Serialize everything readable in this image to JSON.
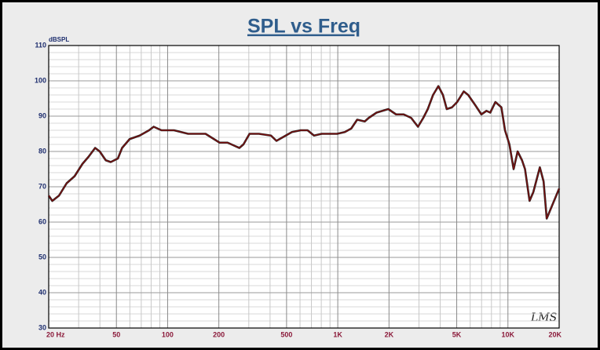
{
  "chart_data": {
    "type": "line",
    "title": "SPL vs Freq",
    "ylabel": "dBSPL",
    "annotation": "LMS",
    "xscale": "log",
    "grid": true,
    "color": "#7a0f0f",
    "x": [
      20,
      21,
      23,
      25.5,
      28.4,
      31.6,
      34.3,
      37.5,
      39.9,
      43.3,
      46.3,
      51,
      54,
      59.8,
      68.5,
      77.8,
      82.8,
      92,
      109,
      132,
      167,
      202,
      225,
      250,
      264,
      279,
      303,
      344,
      405,
      436,
      474,
      538,
      605,
      664,
      725,
      804,
      891,
      991,
      1100,
      1200,
      1300,
      1440,
      1520,
      1690,
      1980,
      2200,
      2440,
      2700,
      2960,
      3180,
      3380,
      3630,
      3900,
      4150,
      4370,
      4690,
      5030,
      5500,
      5840,
      6450,
      6980,
      7480,
      7870,
      8440,
      9150,
      9610,
      10200,
      10800,
      11400,
      12100,
      12600,
      13400,
      14100,
      15400,
      16200,
      16900,
      20000
    ],
    "values": [
      67.5,
      66,
      67.5,
      71,
      73,
      76.5,
      78.5,
      81,
      80,
      77.5,
      77,
      78,
      81,
      83.5,
      84.5,
      86,
      87,
      86,
      86,
      85,
      85,
      82.5,
      82.5,
      81.5,
      81,
      82,
      85,
      85,
      84.5,
      83,
      84,
      85.5,
      86,
      86,
      84.5,
      85,
      85,
      85,
      85.5,
      86.5,
      89,
      88.5,
      89.5,
      91,
      92,
      90.5,
      90.5,
      89.5,
      87,
      89.5,
      92,
      96,
      98.5,
      96,
      92,
      92.5,
      94,
      97,
      96,
      93,
      90.5,
      91.5,
      91,
      94,
      92.5,
      86,
      82,
      75,
      80,
      77.5,
      75,
      66,
      68.5,
      75.5,
      71.5,
      61,
      69.5
    ],
    "xlim": [
      20,
      20000
    ],
    "ylim": [
      30,
      110
    ],
    "xticks": [
      {
        "value": 20,
        "label": "20  Hz"
      },
      50,
      100,
      200,
      500,
      {
        "value": 1000,
        "label": "1K"
      },
      {
        "value": 2000,
        "label": "2K"
      },
      {
        "value": 5000,
        "label": "5K"
      },
      {
        "value": 10000,
        "label": "10K"
      },
      {
        "value": 20000,
        "label": "20K"
      }
    ],
    "yticks": [
      30,
      40,
      50,
      60,
      70,
      80,
      90,
      100,
      110
    ],
    "xminor": [
      30,
      40,
      60,
      70,
      80,
      90,
      300,
      400,
      600,
      700,
      800,
      900,
      3000,
      4000,
      6000,
      7000,
      8000,
      9000
    ],
    "yminor": [
      32,
      34,
      36,
      38,
      42,
      44,
      46,
      48,
      52,
      54,
      56,
      58,
      62,
      64,
      66,
      68,
      72,
      74,
      76,
      78,
      82,
      84,
      86,
      88,
      92,
      94,
      96,
      98,
      102,
      104,
      106,
      108
    ]
  }
}
